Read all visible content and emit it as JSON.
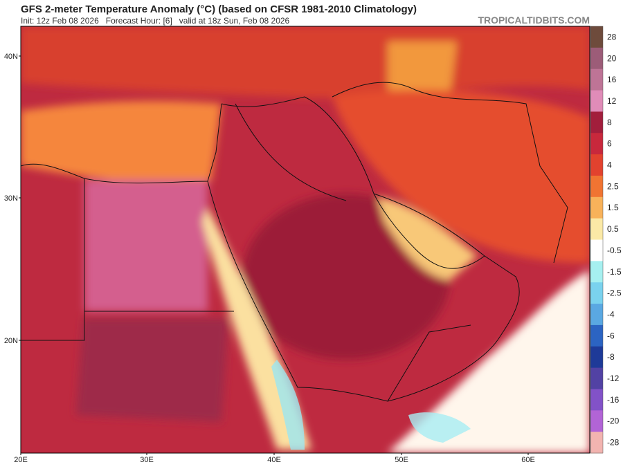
{
  "header": {
    "title": "GFS 2-meter Temperature Anomaly (°C) (based on CFSR 1981-2010 Climatology)",
    "subtitle": "Init: 12z Feb 08 2026   Forecast Hour: [6]   valid at 18z Sun, Feb 08 2026",
    "source": "TROPICALTIDBITS.COM"
  },
  "map": {
    "lat_labels": [
      "40N",
      "30N",
      "20N"
    ],
    "lon_labels": [
      "20E",
      "30E",
      "40E",
      "50E",
      "60E"
    ]
  },
  "colorbar": {
    "labels": [
      "28",
      "20",
      "16",
      "12",
      "8",
      "6",
      "4",
      "2.5",
      "1.5",
      "0.5",
      "-0.5",
      "-1.5",
      "-2.5",
      "-4",
      "-6",
      "-8",
      "-12",
      "-16",
      "-20",
      "-28"
    ],
    "colors": [
      "#6e4b3c",
      "#9c5c78",
      "#be7496",
      "#e08cb8",
      "#a21e3c",
      "#c8283c",
      "#e2422e",
      "#f07432",
      "#f8b25a",
      "#fbe9a6",
      "#ffffff",
      "#a6f0f0",
      "#7ad2ee",
      "#5aa8e2",
      "#2c64c2",
      "#1e3a98",
      "#5242a4",
      "#8252c8",
      "#b264d6",
      "#f2b4b0"
    ]
  }
}
